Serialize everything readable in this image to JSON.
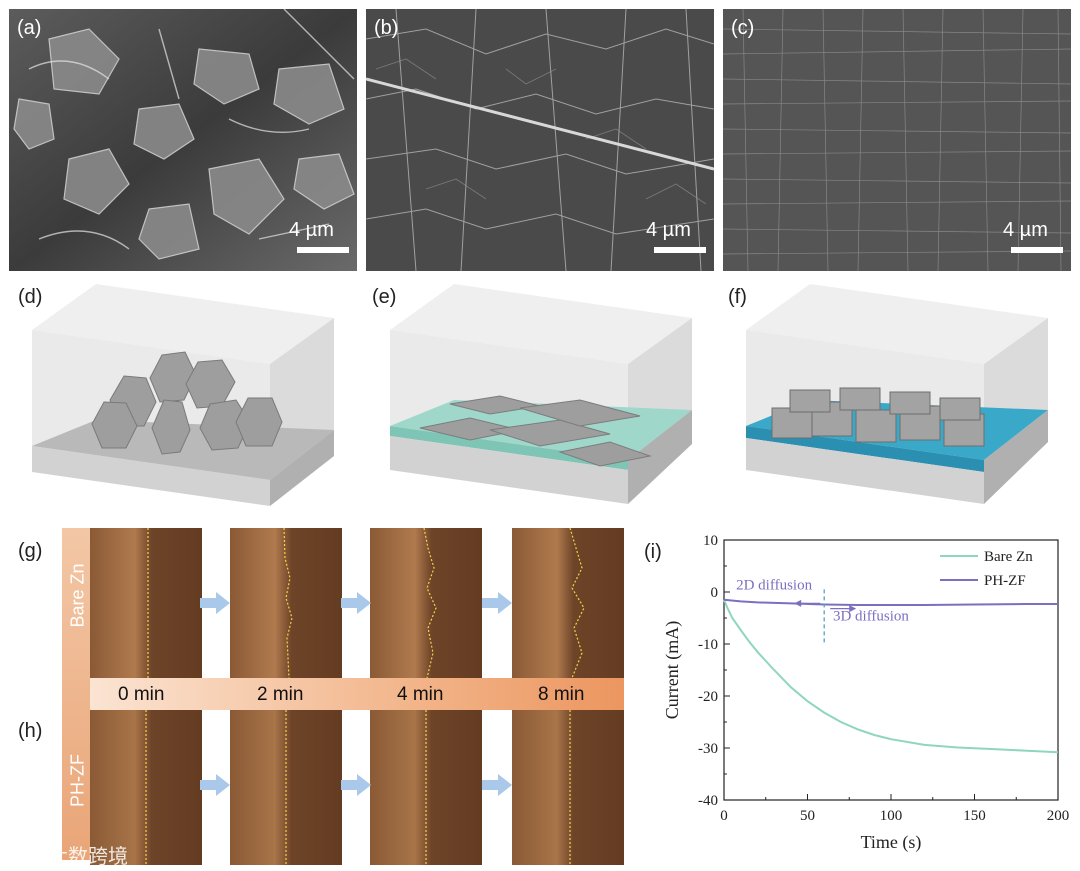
{
  "panels": {
    "a": {
      "label": "(a)",
      "scale": "4 µm"
    },
    "b": {
      "label": "(b)",
      "scale": "4 µm"
    },
    "c": {
      "label": "(c)",
      "scale": "4 µm"
    },
    "d": {
      "label": "(d)"
    },
    "e": {
      "label": "(e)"
    },
    "f": {
      "label": "(f)"
    },
    "g": {
      "label": "(g)",
      "row_label": "Bare Zn"
    },
    "h": {
      "label": "(h)",
      "row_label": "PH-ZF"
    },
    "i": {
      "label": "(i)"
    }
  },
  "time_labels": [
    "0 min",
    "2 min",
    "4 min",
    "8 min"
  ],
  "watermark": "大数跨境",
  "colors": {
    "bare_zn": "#8fd6bc",
    "ph_zf": "#7b6fc0",
    "annotation": "#7b6fc0",
    "dashed_line": "#5aa0c8"
  },
  "chart_data": {
    "type": "line",
    "xlabel": "Time (s)",
    "ylabel": "Current (mA)",
    "xlim": [
      0,
      200
    ],
    "ylim": [
      -40,
      10
    ],
    "xticks": [
      "0",
      "50",
      "100",
      "150",
      "200"
    ],
    "yticks": [
      "10",
      "0",
      "-10",
      "-20",
      "-30",
      "-40"
    ],
    "legend_position": "top-right",
    "series": [
      {
        "name": "Bare Zn",
        "x": [
          0,
          2,
          5,
          10,
          15,
          20,
          30,
          40,
          50,
          60,
          70,
          80,
          90,
          100,
          120,
          140,
          160,
          180,
          200
        ],
        "values": [
          -1.5,
          -3,
          -5,
          -7.3,
          -9.5,
          -11.5,
          -15,
          -18.3,
          -21,
          -23.2,
          -25,
          -26.4,
          -27.5,
          -28.3,
          -29.4,
          -29.9,
          -30.2,
          -30.5,
          -30.8
        ]
      },
      {
        "name": "PH-ZF",
        "x": [
          0,
          10,
          20,
          40,
          60,
          80,
          100,
          120,
          150,
          180,
          200
        ],
        "values": [
          -1.5,
          -1.8,
          -2.0,
          -2.2,
          -2.4,
          -2.5,
          -2.5,
          -2.5,
          -2.4,
          -2.3,
          -2.3
        ]
      }
    ],
    "annotations": [
      {
        "text": "2D diffusion",
        "x": 30,
        "y": 0.5,
        "arrow": "left"
      },
      {
        "text": "3D diffusion",
        "x": 88,
        "y": -5.5,
        "arrow": "right"
      }
    ],
    "vline_x": 60
  }
}
